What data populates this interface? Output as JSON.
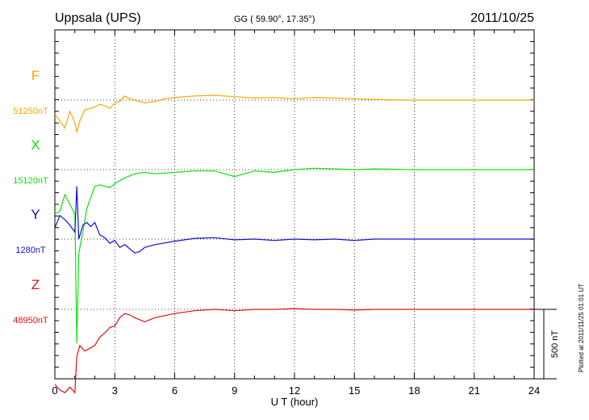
{
  "header": {
    "station": "Uppsala (UPS)",
    "coords": "GG ( 59.90°,  17.35°)",
    "date": "2011/10/25"
  },
  "footer": {
    "plotted": "Plotted at 2011/11/25 01:01  UT",
    "scale_label": "500 nT"
  },
  "colors": {
    "F": "#f5a800",
    "X": "#10e010",
    "Y": "#1010d0",
    "Z": "#e01010"
  },
  "chart_data": {
    "type": "line",
    "xlabel": "U T (hour)",
    "xlim": [
      0,
      24
    ],
    "xticks": [
      "0",
      "3",
      "6",
      "9",
      "12",
      "15",
      "18",
      "21",
      "24"
    ],
    "scale_nT": 500,
    "series": [
      {
        "name": "F",
        "baseline_label": "51250nT",
        "color": "#f5a800",
        "x": [
          0,
          0.25,
          0.5,
          0.75,
          1.0,
          1.1,
          1.25,
          1.5,
          1.75,
          2.0,
          2.25,
          2.5,
          2.75,
          3.0,
          3.25,
          3.5,
          3.75,
          4.0,
          4.5,
          5.0,
          5.5,
          6.0,
          7,
          8,
          9,
          10,
          11,
          12,
          13,
          14,
          15,
          16,
          18,
          20,
          22,
          24
        ],
        "y": [
          -100,
          -150,
          -200,
          -80,
          -160,
          -230,
          -150,
          -70,
          -60,
          -50,
          -30,
          -40,
          -60,
          -20,
          -10,
          30,
          10,
          0,
          -20,
          -10,
          10,
          20,
          30,
          35,
          25,
          15,
          20,
          10,
          20,
          15,
          10,
          5,
          0,
          0,
          0,
          0
        ]
      },
      {
        "name": "X",
        "baseline_label": "15120nT",
        "color": "#10e010",
        "x": [
          0,
          0.25,
          0.5,
          0.75,
          1.0,
          1.1,
          1.2,
          1.4,
          1.6,
          1.8,
          2.0,
          2.25,
          2.5,
          2.75,
          3.0,
          3.5,
          4.0,
          4.5,
          5.0,
          6.0,
          7,
          8,
          9,
          10,
          11,
          12,
          13,
          14,
          15,
          16,
          18,
          20,
          22,
          24
        ],
        "y": [
          -320,
          -300,
          -180,
          -250,
          -320,
          -1250,
          -600,
          -450,
          -280,
          -200,
          -120,
          -110,
          -120,
          -130,
          -100,
          -60,
          -30,
          -20,
          -30,
          -20,
          -10,
          -10,
          -50,
          -10,
          -20,
          0,
          10,
          5,
          0,
          5,
          0,
          0,
          0,
          0
        ]
      },
      {
        "name": "Y",
        "baseline_label": "1280nT",
        "color": "#1010d0",
        "x": [
          0,
          0.25,
          0.5,
          0.75,
          1.0,
          1.1,
          1.2,
          1.4,
          1.6,
          1.8,
          2.0,
          2.25,
          2.5,
          2.75,
          3.0,
          3.25,
          3.5,
          3.75,
          4.0,
          4.25,
          4.5,
          5.0,
          6.0,
          7,
          8,
          9,
          10,
          11,
          12,
          13,
          14,
          15,
          16,
          18,
          20,
          22,
          24
        ],
        "y": [
          80,
          170,
          140,
          100,
          50,
          380,
          0,
          100,
          120,
          90,
          120,
          30,
          10,
          -30,
          -10,
          -60,
          -40,
          -70,
          -100,
          -90,
          -60,
          -40,
          -15,
          5,
          10,
          -5,
          0,
          -10,
          0,
          -5,
          0,
          -10,
          0,
          0,
          0,
          0,
          0
        ]
      },
      {
        "name": "Z",
        "baseline_label": "48950nT",
        "color": "#e01010",
        "x": [
          0,
          0.25,
          0.5,
          0.75,
          1.0,
          1.1,
          1.25,
          1.5,
          1.75,
          2.0,
          2.25,
          2.5,
          2.75,
          3.0,
          3.25,
          3.5,
          3.75,
          4.0,
          4.5,
          5.0,
          6.0,
          7,
          8,
          9,
          10,
          11,
          12,
          13,
          14,
          15,
          16,
          18,
          20,
          22,
          24
        ],
        "y": [
          -540,
          -580,
          -600,
          -560,
          -600,
          -340,
          -260,
          -300,
          -280,
          -260,
          -200,
          -170,
          -130,
          -120,
          -60,
          -30,
          -40,
          -60,
          -90,
          -60,
          -30,
          -10,
          0,
          -10,
          0,
          0,
          5,
          0,
          0,
          -5,
          0,
          0,
          0,
          0,
          0
        ]
      }
    ]
  }
}
